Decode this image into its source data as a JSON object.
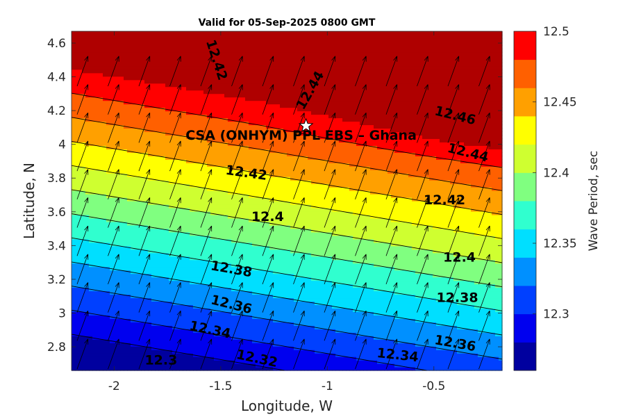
{
  "chart_data": {
    "type": "contour",
    "title": "Valid for 05-Sep-2025 0800 GMT",
    "xlabel": "Longitude, W",
    "ylabel": "Latitude, N",
    "xlim": [
      -2.2,
      -0.18
    ],
    "ylim": [
      2.66,
      4.67
    ],
    "xticks": [
      -2,
      -1.5,
      -1,
      -0.5
    ],
    "xtick_labels": [
      "-2",
      "-1.5",
      "-1",
      "-0.5"
    ],
    "yticks": [
      2.8,
      3,
      3.2,
      3.4,
      3.6,
      3.8,
      4,
      4.2,
      4.4,
      4.6
    ],
    "ytick_labels": [
      "2.8",
      "3",
      "3.2",
      "3.4",
      "3.6",
      "3.8",
      "4",
      "4.2",
      "4.4",
      "4.6"
    ],
    "colorbar": {
      "label": "Wave Period, sec",
      "range": [
        12.26,
        12.5
      ],
      "ticks": [
        12.3,
        12.35,
        12.4,
        12.45,
        12.5
      ],
      "tick_labels": [
        "12.3",
        "12.35",
        "12.4",
        "12.45",
        "12.5"
      ],
      "levels": [
        12.26,
        12.28,
        12.3,
        12.32,
        12.34,
        12.36,
        12.38,
        12.4,
        12.42,
        12.44,
        12.46,
        12.48,
        12.5
      ],
      "colors": [
        "#00009f",
        "#0000ef",
        "#0040ff",
        "#0090ff",
        "#00dfff",
        "#30ffcf",
        "#80ff80",
        "#cfff30",
        "#ffff00",
        "#ffa000",
        "#ff6000",
        "#ff0000",
        "#af0000"
      ]
    },
    "contour_labels": [
      {
        "text": "12.3",
        "x": -1.78,
        "y": 2.72,
        "angle": 0
      },
      {
        "text": "12.32",
        "x": -1.33,
        "y": 2.73,
        "angle": 12
      },
      {
        "text": "12.34",
        "x": -1.55,
        "y": 2.9,
        "angle": 12
      },
      {
        "text": "12.34",
        "x": -0.67,
        "y": 2.75,
        "angle": 6
      },
      {
        "text": "12.36",
        "x": -1.45,
        "y": 3.05,
        "angle": 14
      },
      {
        "text": "12.36",
        "x": -0.4,
        "y": 2.82,
        "angle": 10
      },
      {
        "text": "12.38",
        "x": -1.45,
        "y": 3.26,
        "angle": 10
      },
      {
        "text": "12.38",
        "x": -0.39,
        "y": 3.09,
        "angle": 0
      },
      {
        "text": "12.4",
        "x": -1.28,
        "y": 3.57,
        "angle": 0
      },
      {
        "text": "12.4",
        "x": -0.38,
        "y": 3.33,
        "angle": 0
      },
      {
        "text": "12.42",
        "x": -1.38,
        "y": 3.83,
        "angle": 8
      },
      {
        "text": "12.42",
        "x": -0.45,
        "y": 3.67,
        "angle": 0
      },
      {
        "text": "12.42",
        "x": -1.52,
        "y": 4.5,
        "angle": 72
      },
      {
        "text": "12.44",
        "x": -1.08,
        "y": 4.32,
        "angle": -60
      },
      {
        "text": "12.44",
        "x": -0.34,
        "y": 3.95,
        "angle": 14
      },
      {
        "text": "12.46",
        "x": -0.4,
        "y": 4.17,
        "angle": 14
      }
    ],
    "site": {
      "name": "CSA (ONHYM) PPL EBS  – Ghana",
      "lon": -1.1,
      "lat": 4.11
    },
    "vector_field": {
      "direction_deg_from_north": 20,
      "description": "uniform wave direction arrows"
    }
  }
}
